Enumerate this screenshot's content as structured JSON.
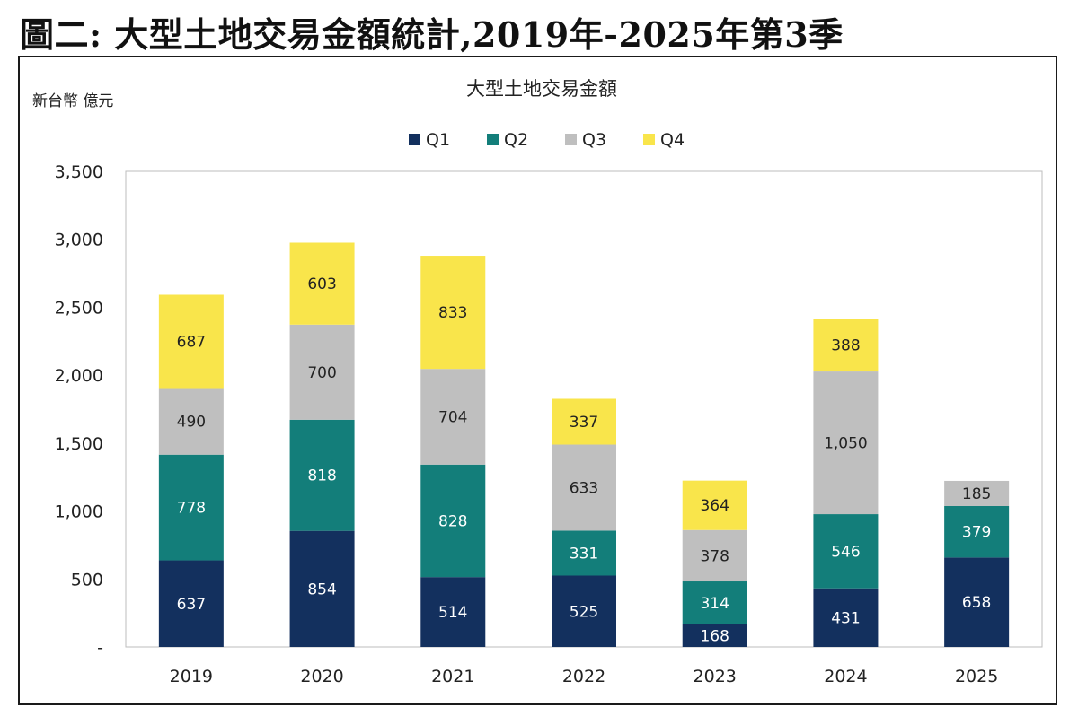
{
  "page_title": "圖二: 大型土地交易金額統計,2019年-2025年第3季",
  "chart_data": {
    "type": "bar",
    "stacked": true,
    "title": "大型土地交易金額",
    "ylabel": "新台幣 億元",
    "xlabel": "",
    "categories": [
      "2019",
      "2020",
      "2021",
      "2022",
      "2023",
      "2024",
      "2025"
    ],
    "series": [
      {
        "name": "Q1",
        "color": "#13305e",
        "values": [
          637,
          854,
          514,
          525,
          168,
          431,
          658
        ],
        "labels": [
          "637",
          "854",
          "514",
          "525",
          "168",
          "431",
          "658"
        ]
      },
      {
        "name": "Q2",
        "color": "#137e7a",
        "values": [
          778,
          818,
          828,
          331,
          314,
          546,
          379
        ],
        "labels": [
          "778",
          "818",
          "828",
          "331",
          "314",
          "546",
          "379"
        ]
      },
      {
        "name": "Q3",
        "color": "#bfbfbf",
        "values": [
          490,
          700,
          704,
          633,
          378,
          1050,
          185
        ],
        "labels": [
          "490",
          "700",
          "704",
          "633",
          "378",
          "1,050",
          "185"
        ]
      },
      {
        "name": "Q4",
        "color": "#f9e54b",
        "values": [
          687,
          603,
          833,
          337,
          364,
          388,
          null
        ],
        "labels": [
          "687",
          "603",
          "833",
          "337",
          "364",
          "388",
          ""
        ]
      }
    ],
    "ylim": [
      0,
      3500
    ],
    "yticks": [
      0,
      500,
      1000,
      1500,
      2000,
      2500,
      3000,
      3500
    ],
    "ytick_labels": [
      "-",
      "500",
      "1,000",
      "1,500",
      "2,000",
      "2,500",
      "3,000",
      "3,500"
    ],
    "legend": "top-center",
    "grid": false
  }
}
